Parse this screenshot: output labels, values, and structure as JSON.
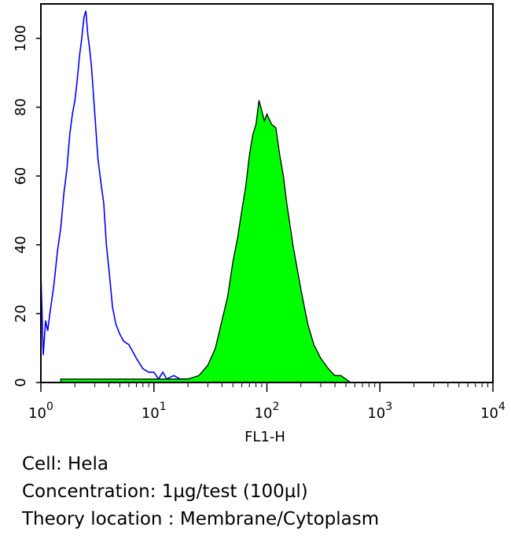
{
  "chart_data": {
    "type": "area",
    "xlabel": "FL1-H",
    "ylabel": "",
    "x_scale": "log",
    "xlim": [
      1,
      10000
    ],
    "ylim": [
      0,
      110
    ],
    "x_ticks": [
      {
        "value": 1,
        "base": "10",
        "exp": "0"
      },
      {
        "value": 10,
        "base": "10",
        "exp": "1"
      },
      {
        "value": 100,
        "base": "10",
        "exp": "2"
      },
      {
        "value": 1000,
        "base": "10",
        "exp": "3"
      },
      {
        "value": 10000,
        "base": "10",
        "exp": "4"
      }
    ],
    "y_ticks": [
      {
        "value": 0,
        "label": "0"
      },
      {
        "value": 20,
        "label": "20"
      },
      {
        "value": 40,
        "label": "40"
      },
      {
        "value": 60,
        "label": "60"
      },
      {
        "value": 80,
        "label": "80"
      },
      {
        "value": 100,
        "label": "100"
      }
    ],
    "series": [
      {
        "style": "outline",
        "color": "#0000ff",
        "x": [
          1.0,
          1.05,
          1.1,
          1.15,
          1.2,
          1.3,
          1.4,
          1.5,
          1.6,
          1.7,
          1.8,
          1.9,
          2.0,
          2.1,
          2.2,
          2.3,
          2.4,
          2.5,
          2.6,
          2.7,
          2.8,
          3.0,
          3.2,
          3.4,
          3.6,
          3.8,
          4.0,
          4.3,
          4.6,
          5.0,
          5.4,
          6.0,
          6.5,
          7.0,
          8.0,
          9.0,
          10.0,
          11.0,
          12.0,
          13.0,
          15.0,
          17.0,
          20.0,
          25.0
        ],
        "y": [
          32,
          8,
          18,
          15,
          20,
          28,
          38,
          45,
          55,
          62,
          72,
          78,
          82,
          88,
          95,
          100,
          106,
          108,
          101,
          97,
          92,
          78,
          65,
          58,
          52,
          40,
          33,
          22,
          17,
          14,
          12,
          11,
          9,
          7,
          4,
          3,
          3,
          1,
          3,
          1,
          2,
          1,
          1,
          0
        ]
      },
      {
        "style": "filled",
        "color": "#00ff00",
        "x": [
          1.5,
          3.0,
          5.0,
          10.0,
          15.0,
          20.0,
          25.0,
          30.0,
          35.0,
          40.0,
          45.0,
          50.0,
          55.0,
          60.0,
          65.0,
          70.0,
          75.0,
          80.0,
          85.0,
          90.0,
          95.0,
          100.0,
          110.0,
          120.0,
          130.0,
          140.0,
          150.0,
          170.0,
          200.0,
          230.0,
          260.0,
          300.0,
          350.0,
          400.0,
          450.0,
          500.0,
          550.0
        ],
        "y": [
          1,
          1,
          1,
          1,
          1,
          1,
          2,
          5,
          10,
          18,
          25,
          35,
          42,
          50,
          57,
          66,
          72,
          75,
          82,
          79,
          76,
          78,
          75,
          74,
          66,
          60,
          52,
          40,
          27,
          17,
          11,
          7,
          4,
          2,
          2,
          1,
          0
        ]
      }
    ]
  },
  "caption": {
    "cell": "Cell: Hela",
    "concentration": "Concentration: 1µg/test (100µl)",
    "theory_location": "Theory location : Membrane/Cytoplasm"
  }
}
